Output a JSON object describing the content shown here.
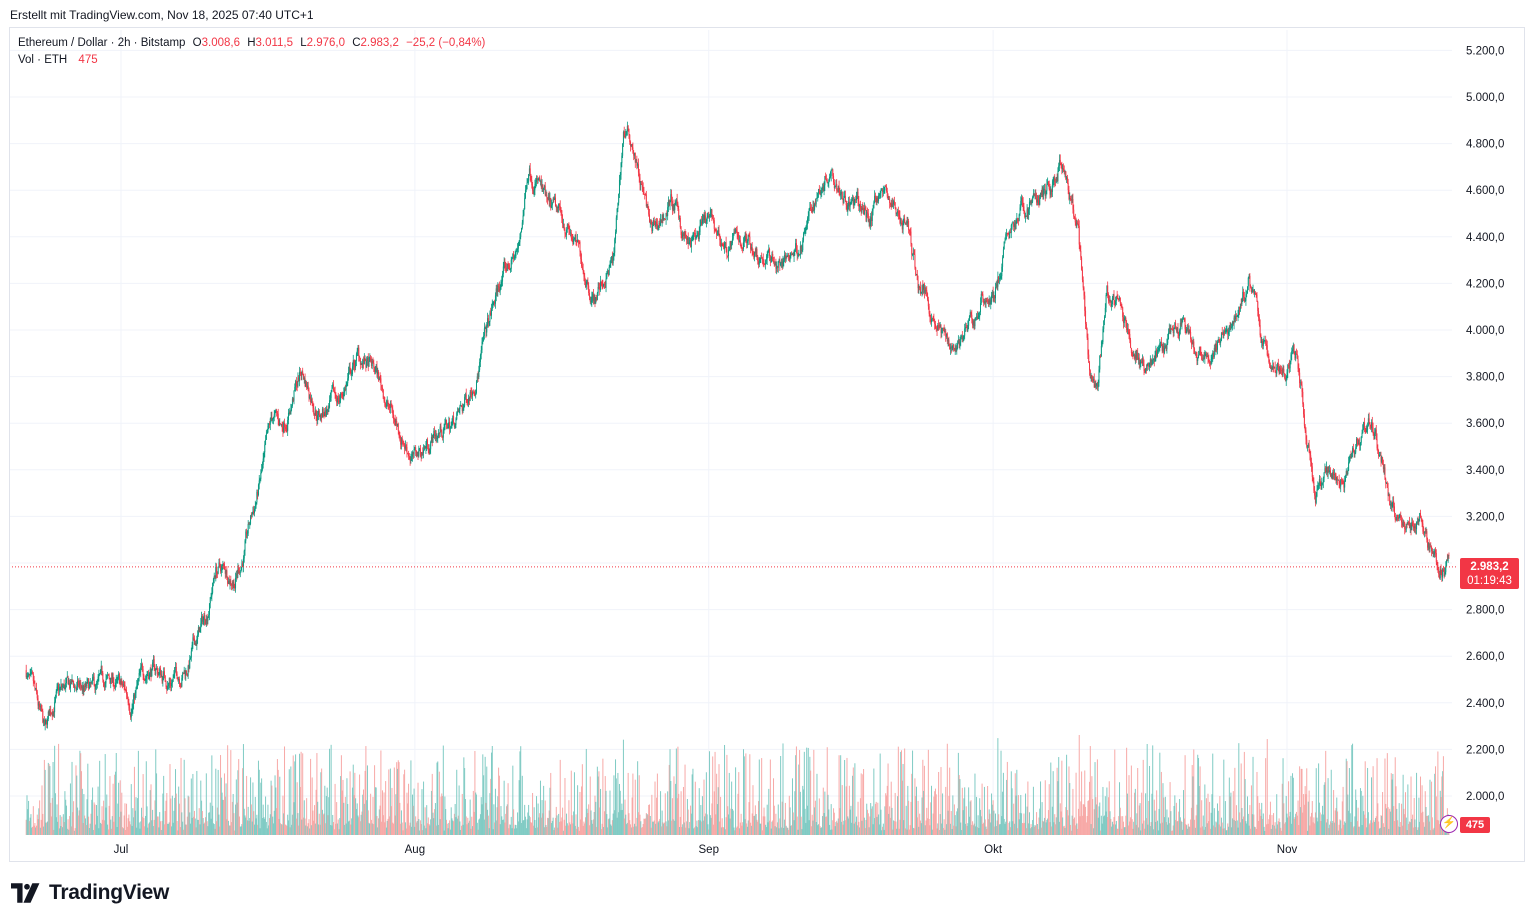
{
  "caption": "Erstellt mit TradingView.com, Nov 18, 2025 07:40 UTC+1",
  "legend": {
    "symbol": "Ethereum / Dollar · 2h · Bitstamp",
    "open_label": "O",
    "open": "3.008,6",
    "high_label": "H",
    "high": "3.011,5",
    "low_label": "L",
    "low": "2.976,0",
    "close_label": "C",
    "close": "2.983,2",
    "change": "−25,2 (−0,84%)",
    "vol_label": "Vol · ETH",
    "vol": "475"
  },
  "price_tag": {
    "price": "2.983,2",
    "countdown": "01:19:43"
  },
  "volume_tag": "475",
  "brand": "TradingView",
  "colors": {
    "up": "#089981",
    "down": "#f23645",
    "up_vol": "#80cbc4",
    "down_vol": "#f7a9a7",
    "grid": "#f0f3fa",
    "axis_text": "#131722"
  },
  "chart_data": {
    "type": "candlestick",
    "symbol": "ETHUSD",
    "timeframe": "2h",
    "exchange": "Bitstamp",
    "y_axis": {
      "ticks": [
        2000,
        2200,
        2400,
        2600,
        2800,
        3000,
        3200,
        3400,
        3600,
        3800,
        4000,
        4200,
        4400,
        4600,
        4800,
        5000,
        5200
      ],
      "tick_labels": [
        "2.000,0",
        "2.200,0",
        "2.400,0",
        "2.600,0",
        "2.800,0",
        "3.000,0",
        "3.200,0",
        "3.400,0",
        "3.600,0",
        "3.800,0",
        "4.000,0",
        "4.200,0",
        "4.400,0",
        "4.600,0",
        "4.800,0",
        "5.000,0",
        "5.200,0"
      ],
      "range": [
        1830,
        5280
      ]
    },
    "x_axis": {
      "labels": [
        "Jul",
        "Aug",
        "Sep",
        "Okt",
        "Nov"
      ],
      "label_dates": [
        "2025-07-01",
        "2025-08-01",
        "2025-09-01",
        "2025-10-01",
        "2025-11-01"
      ],
      "range": [
        "2025-06-21",
        "2025-11-18"
      ]
    },
    "last_price": 2983.2,
    "price_path": [
      [
        "2025-06-21",
        2540
      ],
      [
        "2025-06-22",
        2380
      ],
      [
        "2025-06-23",
        2240
      ],
      [
        "2025-06-24",
        2420
      ],
      [
        "2025-06-26",
        2460
      ],
      [
        "2025-06-28",
        2430
      ],
      [
        "2025-06-30",
        2490
      ],
      [
        "2025-07-02",
        2410
      ],
      [
        "2025-07-04",
        2560
      ],
      [
        "2025-07-06",
        2500
      ],
      [
        "2025-07-08",
        2560
      ],
      [
        "2025-07-10",
        2780
      ],
      [
        "2025-07-11",
        2980
      ],
      [
        "2025-07-13",
        2950
      ],
      [
        "2025-07-14",
        3050
      ],
      [
        "2025-07-16",
        3400
      ],
      [
        "2025-07-17",
        3600
      ],
      [
        "2025-07-18",
        3580
      ],
      [
        "2025-07-20",
        3820
      ],
      [
        "2025-07-22",
        3650
      ],
      [
        "2025-07-24",
        3700
      ],
      [
        "2025-07-26",
        3880
      ],
      [
        "2025-07-28",
        3800
      ],
      [
        "2025-07-30",
        3600
      ],
      [
        "2025-08-01",
        3450
      ],
      [
        "2025-08-03",
        3550
      ],
      [
        "2025-08-05",
        3600
      ],
      [
        "2025-08-06",
        3650
      ],
      [
        "2025-08-08",
        3900
      ],
      [
        "2025-08-10",
        4200
      ],
      [
        "2025-08-12",
        4350
      ],
      [
        "2025-08-13",
        4720
      ],
      [
        "2025-08-14",
        4650
      ],
      [
        "2025-08-15",
        4500
      ],
      [
        "2025-08-17",
        4450
      ],
      [
        "2025-08-19",
        4250
      ],
      [
        "2025-08-20",
        4150
      ],
      [
        "2025-08-22",
        4300
      ],
      [
        "2025-08-23",
        4850
      ],
      [
        "2025-08-24",
        4800
      ],
      [
        "2025-08-25",
        4600
      ],
      [
        "2025-08-26",
        4400
      ],
      [
        "2025-08-28",
        4550
      ],
      [
        "2025-08-30",
        4350
      ],
      [
        "2025-09-01",
        4450
      ],
      [
        "2025-09-03",
        4350
      ],
      [
        "2025-09-05",
        4400
      ],
      [
        "2025-09-07",
        4320
      ],
      [
        "2025-09-09",
        4280
      ],
      [
        "2025-09-11",
        4400
      ],
      [
        "2025-09-13",
        4650
      ],
      [
        "2025-09-14",
        4720
      ],
      [
        "2025-09-16",
        4550
      ],
      [
        "2025-09-18",
        4480
      ],
      [
        "2025-09-19",
        4620
      ],
      [
        "2025-09-21",
        4500
      ],
      [
        "2025-09-22",
        4450
      ],
      [
        "2025-09-23",
        4200
      ],
      [
        "2025-09-24",
        4150
      ],
      [
        "2025-09-25",
        4050
      ],
      [
        "2025-09-26",
        3950
      ],
      [
        "2025-09-27",
        3950
      ],
      [
        "2025-09-29",
        4020
      ],
      [
        "2025-09-30",
        4150
      ],
      [
        "2025-10-01",
        4150
      ],
      [
        "2025-10-02",
        4300
      ],
      [
        "2025-10-03",
        4450
      ],
      [
        "2025-10-05",
        4550
      ],
      [
        "2025-10-07",
        4600
      ],
      [
        "2025-10-08",
        4700
      ],
      [
        "2025-10-09",
        4550
      ],
      [
        "2025-10-10",
        4400
      ],
      [
        "2025-10-11",
        3850
      ],
      [
        "2025-10-12",
        3700
      ],
      [
        "2025-10-13",
        4150
      ],
      [
        "2025-10-14",
        4100
      ],
      [
        "2025-10-15",
        4000
      ],
      [
        "2025-10-17",
        3850
      ],
      [
        "2025-10-19",
        3900
      ],
      [
        "2025-10-21",
        4000
      ],
      [
        "2025-10-23",
        3850
      ],
      [
        "2025-10-25",
        3950
      ],
      [
        "2025-10-27",
        4100
      ],
      [
        "2025-10-28",
        4200
      ],
      [
        "2025-10-29",
        4050
      ],
      [
        "2025-10-30",
        3850
      ],
      [
        "2025-11-01",
        3850
      ],
      [
        "2025-11-02",
        3900
      ],
      [
        "2025-11-03",
        3600
      ],
      [
        "2025-11-04",
        3300
      ],
      [
        "2025-11-05",
        3350
      ],
      [
        "2025-11-07",
        3400
      ],
      [
        "2025-11-09",
        3600
      ],
      [
        "2025-11-10",
        3600
      ],
      [
        "2025-11-11",
        3450
      ],
      [
        "2025-11-12",
        3200
      ],
      [
        "2025-11-14",
        3150
      ],
      [
        "2025-11-15",
        3200
      ],
      [
        "2025-11-16",
        3100
      ],
      [
        "2025-11-17",
        3000
      ],
      [
        "2025-11-18",
        2983.2
      ]
    ]
  }
}
